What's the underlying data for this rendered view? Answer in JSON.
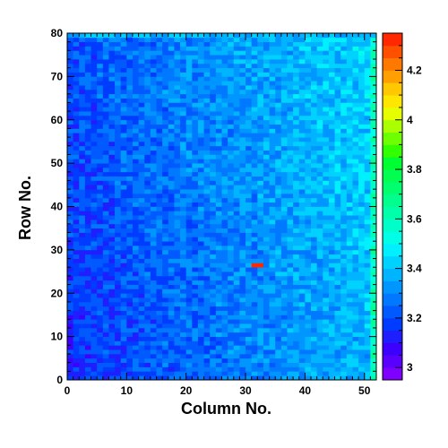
{
  "chart_data": {
    "type": "heatmap",
    "title": "",
    "xlabel": "Column No.",
    "ylabel": "Row No.",
    "xlim": [
      0,
      52
    ],
    "ylim": [
      0,
      80
    ],
    "x_ticks": [
      "0",
      "10",
      "20",
      "30",
      "40",
      "50"
    ],
    "y_ticks": [
      "0",
      "10",
      "20",
      "30",
      "40",
      "50",
      "60",
      "70",
      "80"
    ],
    "colorbar": {
      "range": [
        2.95,
        4.35
      ],
      "ticks": [
        "3",
        "3.2",
        "3.4",
        "3.6",
        "3.8",
        "4",
        "4.2"
      ],
      "palette": [
        "#8000ff",
        "#5a00ff",
        "#3c00ff",
        "#1e1eff",
        "#003cff",
        "#005aff",
        "#0078ff",
        "#0096ff",
        "#00b4ff",
        "#00d2ff",
        "#00f0ff",
        "#00ffe6",
        "#00ffc8",
        "#00ffaa",
        "#00ff8c",
        "#00ff6e",
        "#00ff50",
        "#00ff32",
        "#32ff00",
        "#6eff00",
        "#aaff00",
        "#e6ff00",
        "#ffe600",
        "#ffc800",
        "#ffa000",
        "#ff7800",
        "#ff5000",
        "#ff2800"
      ]
    },
    "grid": {
      "columns": 52,
      "rows": 80,
      "value_trend": "lower values (~3.15) on the left and bottom, rising to ~3.4 on the right; highest along column 51 (~3.6) and at the top edge"
    },
    "hotspots": [
      {
        "column": 31,
        "row": 26,
        "value": 4.3
      },
      {
        "column": 32,
        "row": 26,
        "value": 4.3
      }
    ]
  }
}
